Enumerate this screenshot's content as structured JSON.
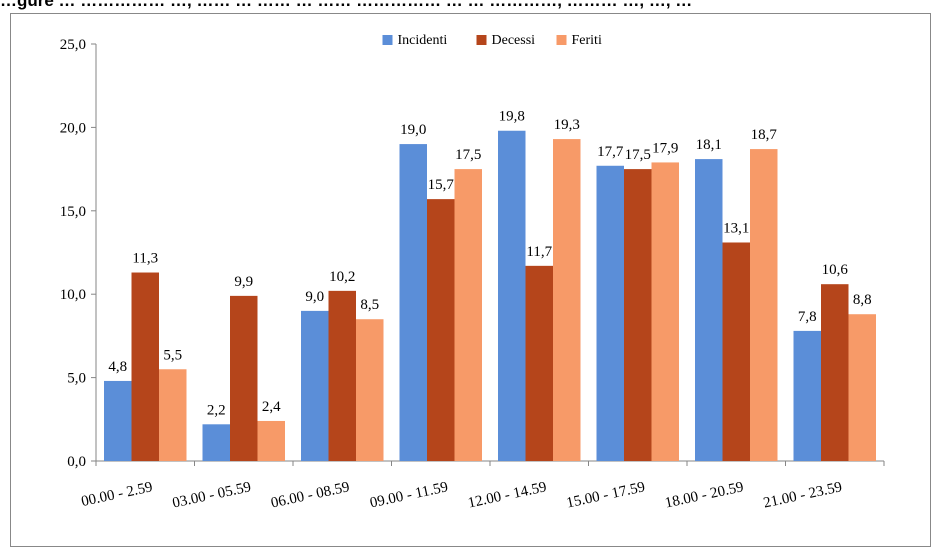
{
  "heading": "…gure … …………… …, …… … …… … …… …………… … … …………, ……… …, …, …",
  "colors": {
    "Incidenti": "#5b8ed8",
    "Decessi": "#b5451b",
    "Feriti": "#f79a68",
    "axis": "#868686",
    "frame": "#888888"
  },
  "chart_data": {
    "type": "bar",
    "categories": [
      "00.00 - 2.59",
      "03.00 - 05.59",
      "06.00 - 08.59",
      "09.00 - 11.59",
      "12.00 - 14.59",
      "15.00 - 17.59",
      "18.00 - 20.59",
      "21.00 - 23.59"
    ],
    "series": [
      {
        "name": "Incidenti",
        "values": [
          4.8,
          2.2,
          9.0,
          19.0,
          19.8,
          17.7,
          18.1,
          7.8
        ],
        "labels": [
          "4,8",
          "2,2",
          "9,0",
          "19,0",
          "19,8",
          "17,7",
          "18,1",
          "7,8"
        ]
      },
      {
        "name": "Decessi",
        "values": [
          11.3,
          9.9,
          10.2,
          15.7,
          11.7,
          17.5,
          13.1,
          10.6
        ],
        "labels": [
          "11,3",
          "9,9",
          "10,2",
          "15,7",
          "11,7",
          "17,5",
          "13,1",
          "10,6"
        ]
      },
      {
        "name": "Feriti",
        "values": [
          5.5,
          2.4,
          8.5,
          17.5,
          19.3,
          17.9,
          18.7,
          8.8
        ],
        "labels": [
          "5,5",
          "2,4",
          "8,5",
          "17,5",
          "19,3",
          "17,9",
          "18,7",
          "8,8"
        ]
      }
    ],
    "yticks": [
      0,
      5,
      10,
      15,
      20,
      25
    ],
    "ytick_labels": [
      "0,0",
      "5,0",
      "10,0",
      "15,0",
      "20,0",
      "25,0"
    ],
    "ylim": [
      0,
      25
    ],
    "grid": false,
    "legend": "top-center"
  }
}
